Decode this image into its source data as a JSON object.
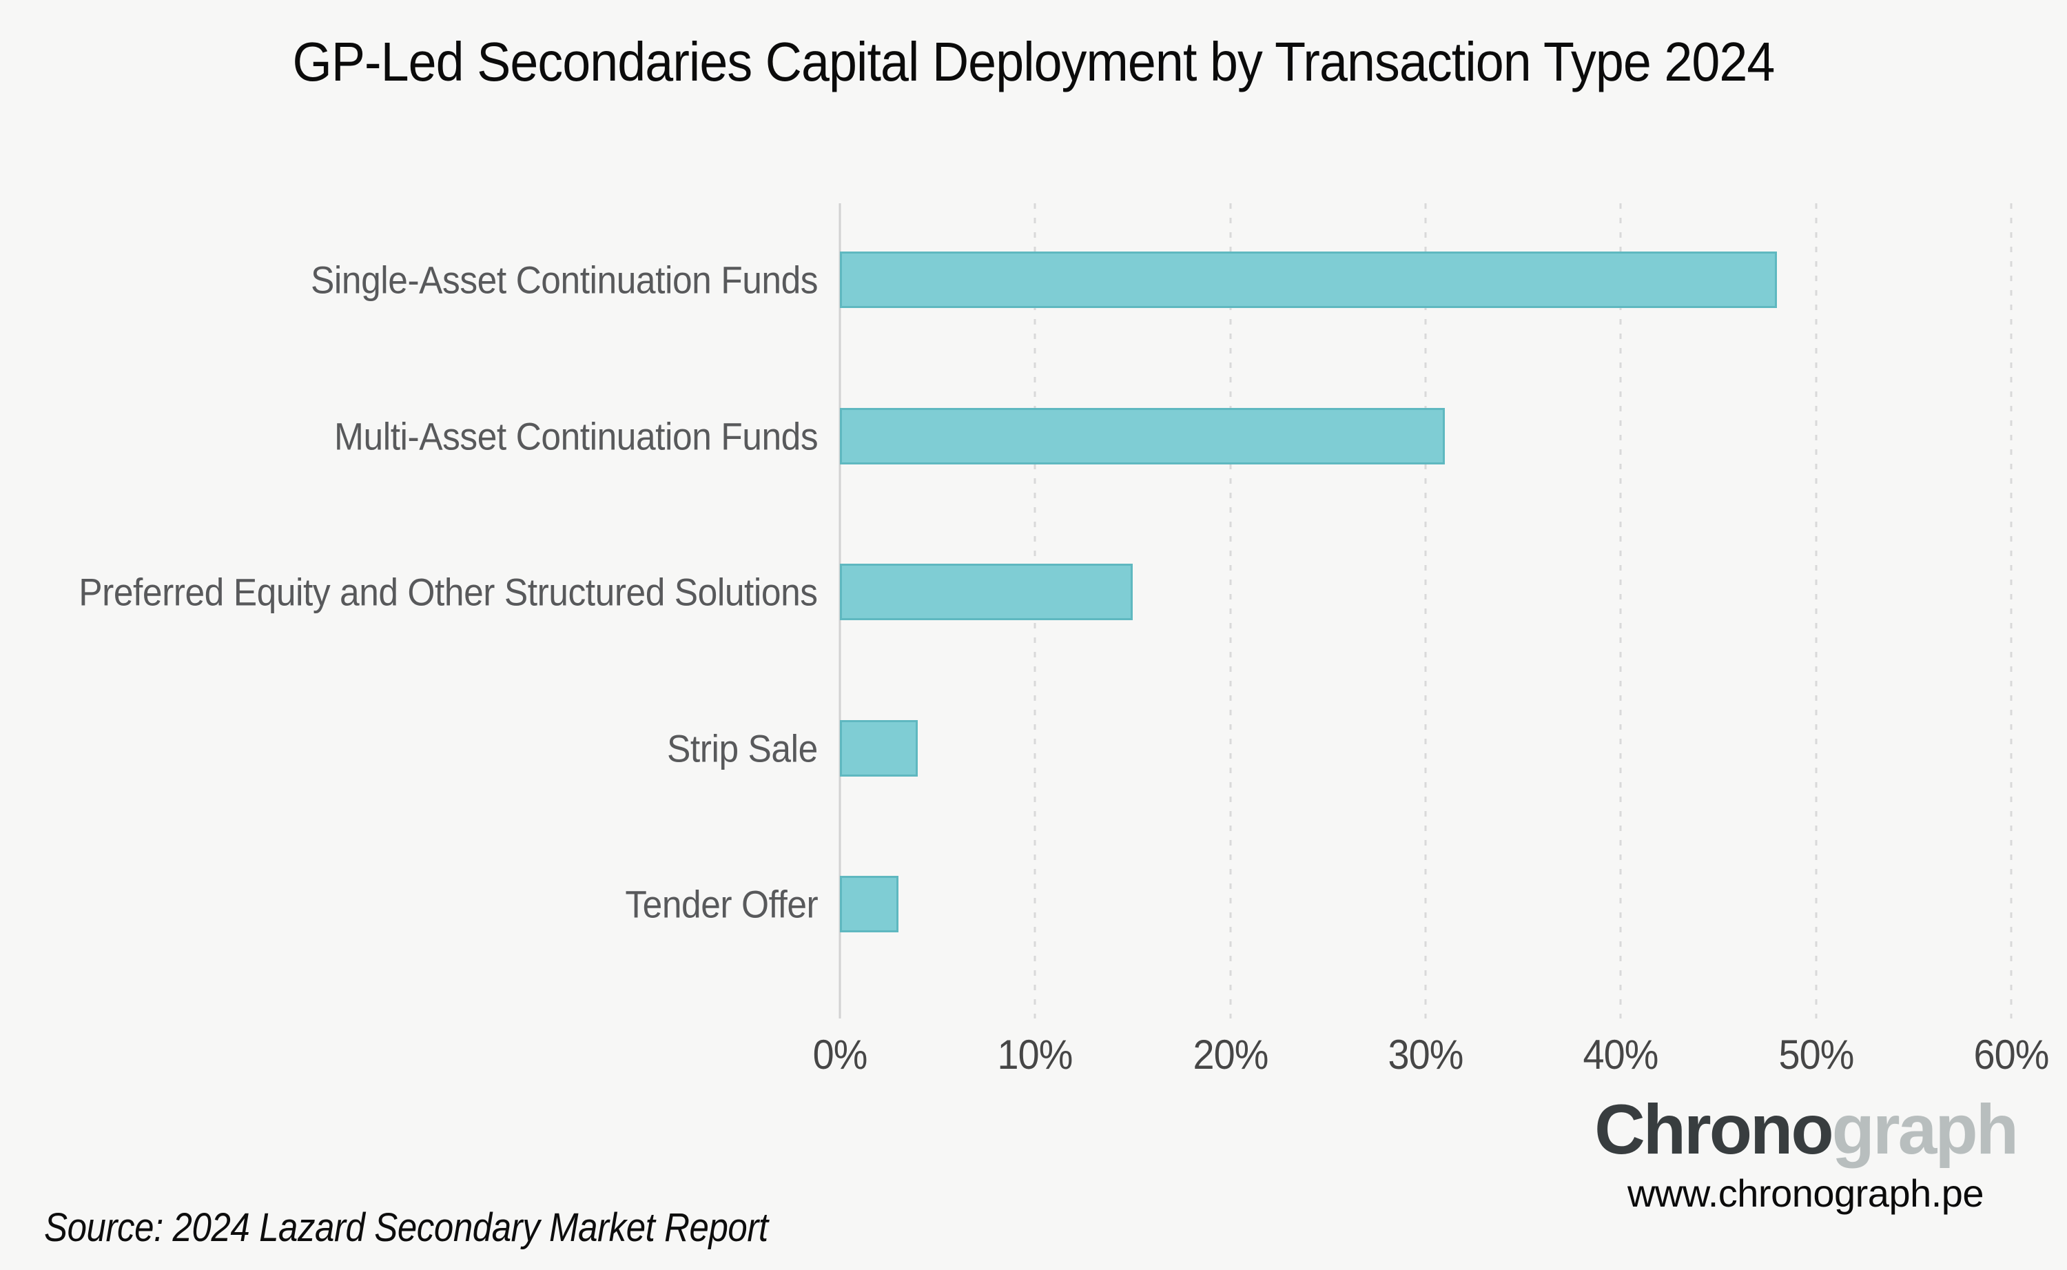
{
  "title": "GP-Led Secondaries Capital Deployment by Transaction Type 2024",
  "source": "Source: 2024 Lazard Secondary Market Report",
  "footer": {
    "logo_primary": "Chrono",
    "logo_secondary": "graph",
    "website": "www.chronograph.pe"
  },
  "colors": {
    "background": "#f7f7f6",
    "bar_fill": "#7fcdd4",
    "bar_border": "#5fb8c0",
    "grid": "#d9d9d9",
    "axis_line": "#d2d2d2",
    "category_label": "#58595b",
    "tick_label": "#464646",
    "title_text": "#0b0b0b",
    "logo_primary": "#383d3f",
    "logo_secondary": "#b8bebe"
  },
  "chart_data": {
    "type": "bar",
    "orientation": "horizontal",
    "title": "GP-Led Secondaries Capital Deployment by Transaction Type 2024",
    "categories": [
      "Single-Asset Continuation Funds",
      "Multi-Asset Continuation Funds",
      "Preferred Equity and Other Structured Solutions",
      "Strip Sale",
      "Tender Offer"
    ],
    "values": [
      48,
      31,
      15,
      4,
      3
    ],
    "unit": "%",
    "xlabel": "",
    "ylabel": "",
    "xlim": [
      0,
      60
    ],
    "xticks": [
      "0%",
      "10%",
      "20%",
      "30%",
      "40%",
      "50%",
      "60%"
    ],
    "grid": "vertical-dashed",
    "legend": "none"
  }
}
